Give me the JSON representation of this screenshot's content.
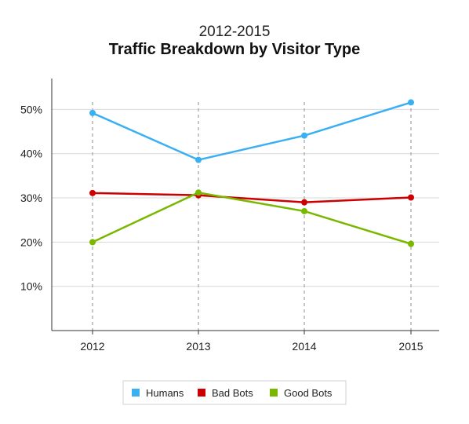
{
  "chart_data": {
    "type": "line",
    "subtitle": "2012-2015",
    "title": "Traffic Breakdown by Visitor Type",
    "xlabel": "",
    "ylabel": "",
    "categories": [
      "2012",
      "2013",
      "2014",
      "2015"
    ],
    "ylim": [
      0,
      57
    ],
    "yticks": [
      10,
      20,
      30,
      40,
      50
    ],
    "ytick_labels": [
      "10%",
      "20%",
      "30%",
      "40%",
      "50%"
    ],
    "grid": "horizontal",
    "x_gridlines": "dashed",
    "legend_position": "bottom",
    "series": [
      {
        "name": "Humans",
        "color": "#3ab0f3",
        "values": [
          49.2,
          38.6,
          44.1,
          51.6
        ]
      },
      {
        "name": "Bad Bots",
        "color": "#cc0000",
        "values": [
          31.1,
          30.6,
          29.0,
          30.1
        ]
      },
      {
        "name": "Good Bots",
        "color": "#7ab800",
        "values": [
          20.0,
          31.2,
          27.0,
          19.6
        ]
      }
    ]
  }
}
